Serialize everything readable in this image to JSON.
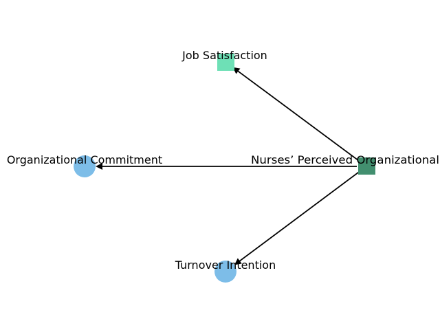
{
  "diagram": {
    "nodes": [
      {
        "id": "source",
        "label": "Nurses’ Perceived Organizational",
        "shape": "square",
        "color": "#428f6f"
      },
      {
        "id": "job",
        "label": "Job Satisfaction",
        "shape": "square",
        "color": "#6ee0b6"
      },
      {
        "id": "commit",
        "label": "Organizational Commitment",
        "shape": "circle",
        "color": "#7dbde8"
      },
      {
        "id": "turnover",
        "label": "Turnover Intention",
        "shape": "circle",
        "color": "#7dbde8"
      }
    ],
    "edges": [
      {
        "from": "source",
        "to": "job"
      },
      {
        "from": "source",
        "to": "commit"
      },
      {
        "from": "source",
        "to": "turnover"
      }
    ],
    "edge_color": "#000000"
  }
}
